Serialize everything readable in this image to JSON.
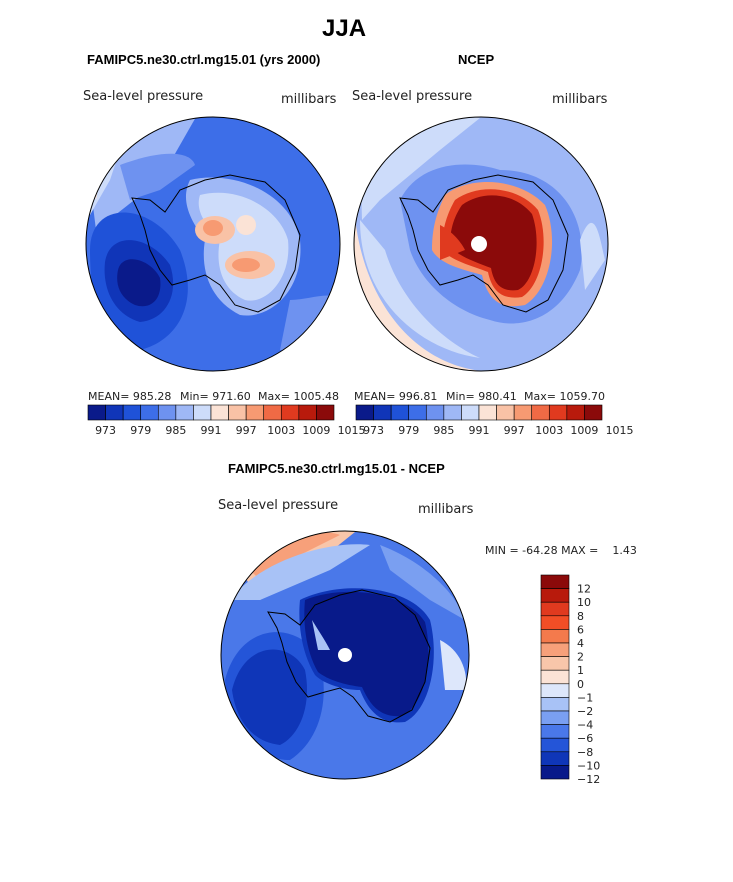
{
  "page_title": "JJA",
  "chart_data": [
    {
      "type": "polar-contour",
      "title": "FAMIPC5.ne30.ctrl.mg15.01 (yrs 2000)",
      "field_label": "Sea-level pressure",
      "units_label": "millibars",
      "stats": {
        "mean_text": "MEAN= 985.28",
        "min_text": "Min= 971.60",
        "max_text": "Max= 1005.48"
      },
      "colorbar_levels": [
        "973",
        "979",
        "985",
        "991",
        "997",
        "1003",
        "1009",
        "1015"
      ]
    },
    {
      "type": "polar-contour",
      "title": "NCEP",
      "field_label": "Sea-level pressure",
      "units_label": "millibars",
      "stats": {
        "mean_text": "MEAN= 996.81",
        "min_text": "Min= 980.41",
        "max_text": "Max= 1059.70"
      },
      "colorbar_levels": [
        "973",
        "979",
        "985",
        "991",
        "997",
        "1003",
        "1009",
        "1015"
      ]
    },
    {
      "type": "polar-contour",
      "title": "FAMIPC5.ne30.ctrl.mg15.01 - NCEP",
      "field_label": "Sea-level pressure",
      "units_label": "millibars",
      "minmax_text": "MIN = -64.28 MAX =    1.43",
      "colorbar_levels": [
        "12",
        "10",
        "8",
        "6",
        "4",
        "2",
        "1",
        "0",
        "−1",
        "−2",
        "−4",
        "−6",
        "−8",
        "−10",
        "−12"
      ]
    }
  ],
  "colors": {
    "abs_scale": [
      "#0a1a8a",
      "#1035b8",
      "#1f52d8",
      "#3d6ee8",
      "#6e92f0",
      "#9fb8f6",
      "#cddcfa",
      "#fbe3d6",
      "#f9c2a6",
      "#f79a72",
      "#f06a45",
      "#e03a1f",
      "#b81a0c",
      "#8b0a0a"
    ],
    "diff_scale": [
      "#8b0a0a",
      "#b81a0c",
      "#e03a1f",
      "#f24e26",
      "#f47a4c",
      "#f7a07a",
      "#f8c6aa",
      "#fbe3d6",
      "#dde7fb",
      "#a8c2f6",
      "#7a9ff1",
      "#4a78e9",
      "#2455d8",
      "#0f36b8",
      "#081a8a"
    ]
  }
}
